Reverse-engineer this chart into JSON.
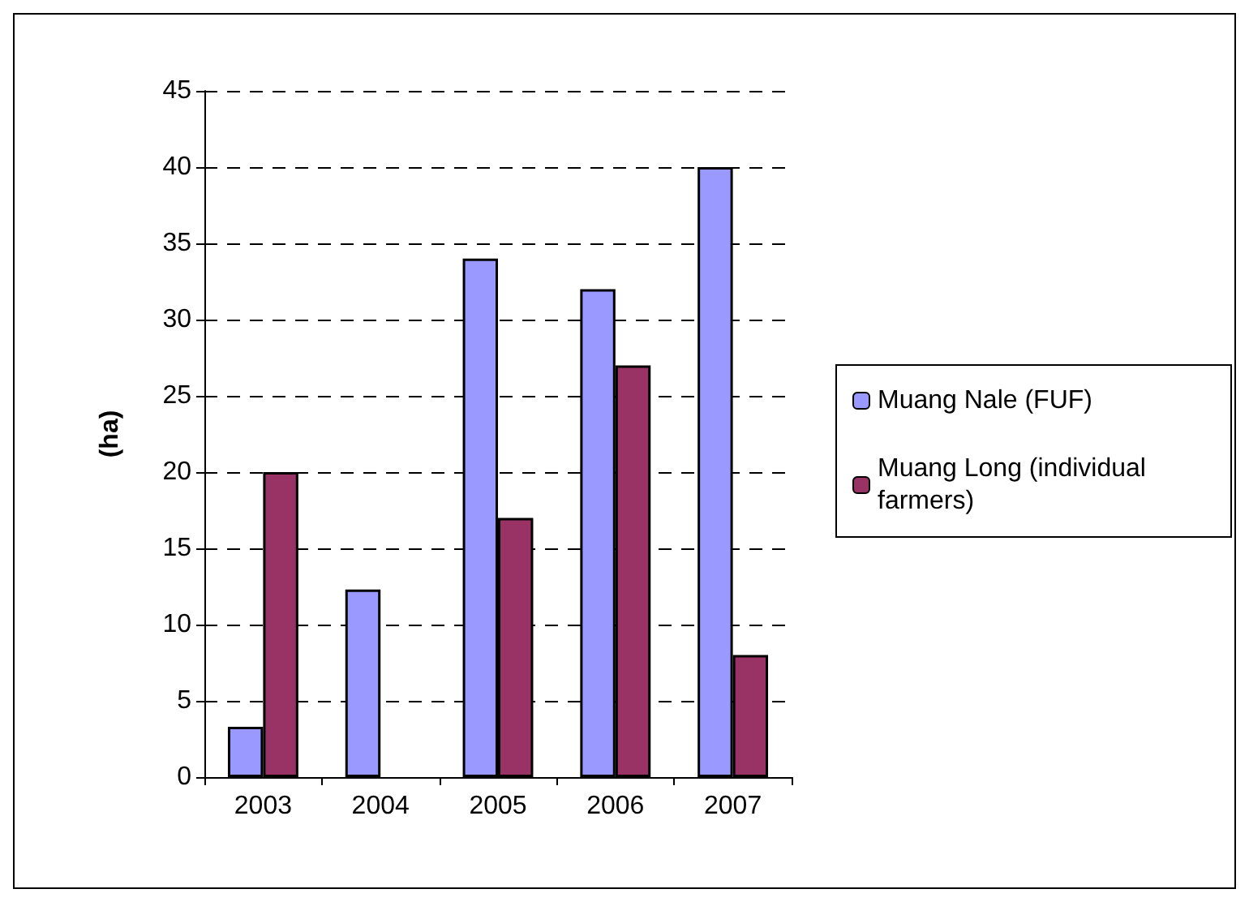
{
  "chart_data": {
    "type": "bar",
    "ylabel": "(ha)",
    "categories": [
      "2003",
      "2004",
      "2005",
      "2006",
      "2007"
    ],
    "series": [
      {
        "name": "Muang Nale (FUF)",
        "color": "#9999ff",
        "values": [
          3.3,
          12.3,
          34,
          32,
          40
        ]
      },
      {
        "name": "Muang Long (individual farmers)",
        "color": "#993366",
        "values": [
          20,
          null,
          17,
          27,
          8
        ]
      }
    ],
    "ylim": [
      0,
      45
    ],
    "yticks": [
      0,
      5,
      10,
      15,
      20,
      25,
      30,
      35,
      40,
      45
    ],
    "grid": "y",
    "legend": "right"
  }
}
